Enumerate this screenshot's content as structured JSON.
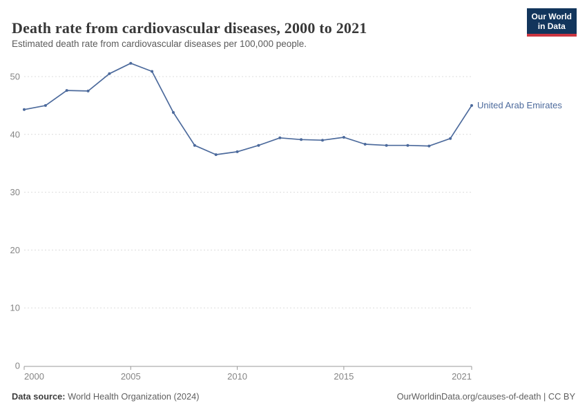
{
  "header": {
    "title": "Death rate from cardiovascular diseases, 2000 to 2021",
    "subtitle": "Estimated death rate from cardiovascular diseases per 100,000 people.",
    "logo": {
      "line1": "Our World",
      "line2": "in Data"
    }
  },
  "chart_data": {
    "type": "line",
    "title": "Death rate from cardiovascular diseases, 2000 to 2021",
    "x": [
      2000,
      2001,
      2002,
      2003,
      2004,
      2005,
      2006,
      2007,
      2008,
      2009,
      2010,
      2011,
      2012,
      2013,
      2014,
      2015,
      2016,
      2017,
      2018,
      2019,
      2020,
      2021
    ],
    "series": [
      {
        "name": "United Arab Emirates",
        "color": "#4c6a9c",
        "values": [
          44.3,
          45.0,
          47.6,
          47.5,
          50.5,
          52.3,
          50.9,
          43.8,
          38.1,
          36.5,
          37.0,
          38.1,
          39.4,
          39.1,
          39.0,
          39.5,
          38.3,
          38.1,
          38.1,
          38.0,
          39.3,
          45.0
        ]
      }
    ],
    "xticks": [
      2000,
      2005,
      2010,
      2015,
      2021
    ],
    "yticks": [
      0,
      10,
      20,
      30,
      40,
      50
    ],
    "ylim": [
      0,
      53.5
    ],
    "xlabel": "",
    "ylabel": "",
    "grid": "horizontal-dashed",
    "legend": "end-of-line-label"
  },
  "annotation": {
    "end_label": "United Arab Emirates"
  },
  "colors": {
    "line": "#4c6a9c",
    "end_label": "#4c6a9c",
    "gridline": "#dcdcdc",
    "axis_line": "#999999",
    "axis_text": "#858585",
    "logo_bg": "#12355c",
    "logo_red": "#cb3540"
  },
  "footer": {
    "datasource_label": "Data source:",
    "datasource_value": "World Health Organization (2024)",
    "credit": "OurWorldinData.org/causes-of-death | CC BY"
  }
}
